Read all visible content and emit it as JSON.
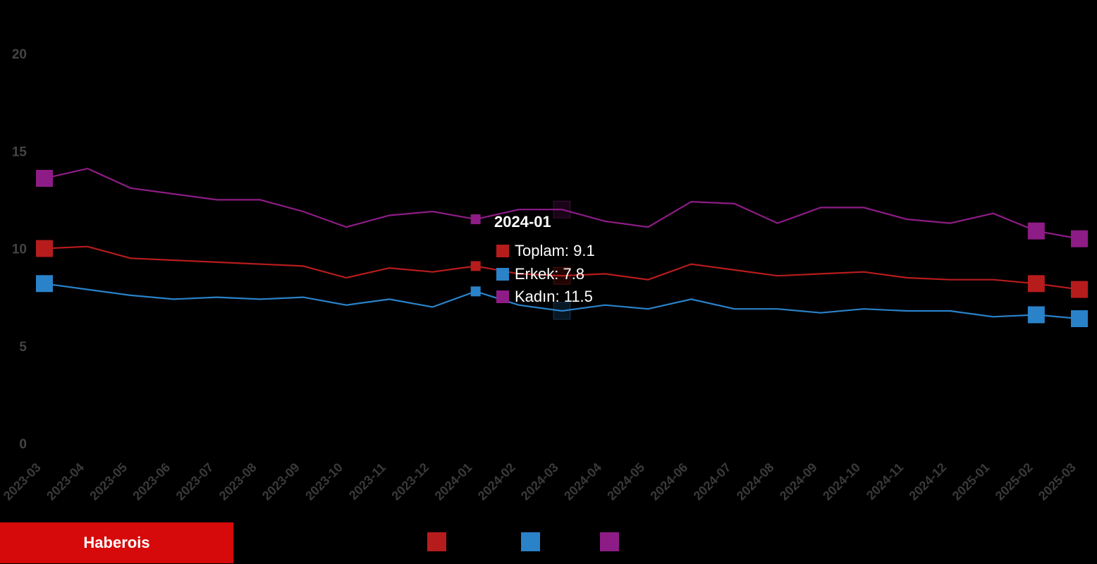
{
  "brand": "Haberois",
  "chart_data": {
    "type": "line",
    "title": "",
    "xlabel": "",
    "ylabel": "",
    "ylim": [
      0,
      20
    ],
    "yticks": [
      0,
      5,
      10,
      15,
      20
    ],
    "grid": false,
    "legend": "bottom",
    "categories": [
      "2023-03",
      "2023-04",
      "2023-05",
      "2023-06",
      "2023-07",
      "2023-08",
      "2023-09",
      "2023-10",
      "2023-11",
      "2023-12",
      "2024-01",
      "2024-02",
      "2024-03",
      "2024-04",
      "2024-05",
      "2024-06",
      "2024-07",
      "2024-08",
      "2024-09",
      "2024-10",
      "2024-11",
      "2024-12",
      "2025-01",
      "2025-02",
      "2025-03"
    ],
    "series": [
      {
        "name": "Toplam",
        "color": "#b71c1c",
        "values": [
          10.0,
          10.1,
          9.5,
          9.4,
          9.3,
          9.2,
          9.1,
          8.5,
          9.0,
          8.8,
          9.1,
          8.7,
          8.6,
          8.7,
          8.4,
          9.2,
          8.9,
          8.6,
          8.7,
          8.8,
          8.5,
          8.4,
          8.4,
          8.2,
          7.9
        ]
      },
      {
        "name": "Erkek",
        "color": "#2a82c9",
        "values": [
          8.2,
          7.9,
          7.6,
          7.4,
          7.5,
          7.4,
          7.5,
          7.1,
          7.4,
          7.0,
          7.8,
          7.1,
          6.8,
          7.1,
          6.9,
          7.4,
          6.9,
          6.9,
          6.7,
          6.9,
          6.8,
          6.8,
          6.5,
          6.6,
          6.4
        ]
      },
      {
        "name": "Kadın",
        "color": "#8e1c86",
        "values": [
          13.6,
          14.1,
          13.1,
          12.8,
          12.5,
          12.5,
          11.9,
          11.1,
          11.7,
          11.9,
          11.5,
          12.0,
          12.0,
          11.4,
          11.1,
          12.4,
          12.3,
          11.3,
          12.1,
          12.1,
          11.5,
          11.3,
          11.8,
          10.9,
          10.5
        ]
      }
    ]
  },
  "tooltip": {
    "title": "2024-01",
    "rows": [
      {
        "label": "Toplam: 9.1",
        "color": "#b71c1c"
      },
      {
        "label": "Erkek: 7.8",
        "color": "#2a82c9"
      },
      {
        "label": "Kadın: 11.5",
        "color": "#8e1c86"
      }
    ]
  }
}
